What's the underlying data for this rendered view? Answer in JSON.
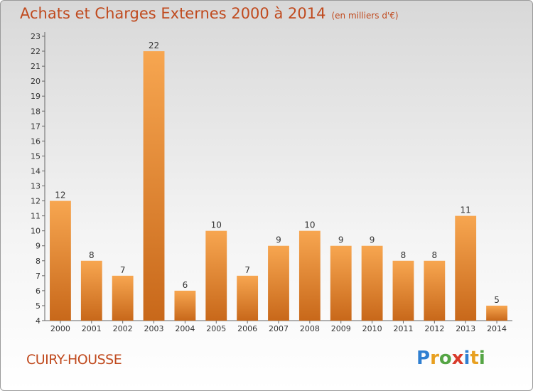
{
  "chart_data": {
    "type": "bar",
    "title": "Achats et Charges Externes 2000 à 2014",
    "unit": "(en milliers d'€)",
    "categories": [
      "2000",
      "2001",
      "2002",
      "2003",
      "2004",
      "2005",
      "2006",
      "2007",
      "2008",
      "2009",
      "2010",
      "2011",
      "2012",
      "2013",
      "2014"
    ],
    "values": [
      12,
      8,
      7,
      22,
      6,
      10,
      7,
      9,
      10,
      9,
      9,
      8,
      8,
      11,
      5
    ],
    "ylim": [
      4,
      23
    ],
    "yticks": [
      4,
      5,
      6,
      7,
      8,
      9,
      10,
      11,
      12,
      13,
      14,
      15,
      16,
      17,
      18,
      19,
      20,
      21,
      22,
      23
    ],
    "grid": false,
    "bar_color_top": "#f5a04a",
    "bar_color_bottom": "#c96a1a"
  },
  "footer": {
    "commune": "CUIRY-HOUSSE",
    "brand_letters": [
      "P",
      "r",
      "o",
      "x",
      "i",
      "t",
      "i"
    ]
  },
  "colors": {
    "title": "#c04a1e"
  }
}
